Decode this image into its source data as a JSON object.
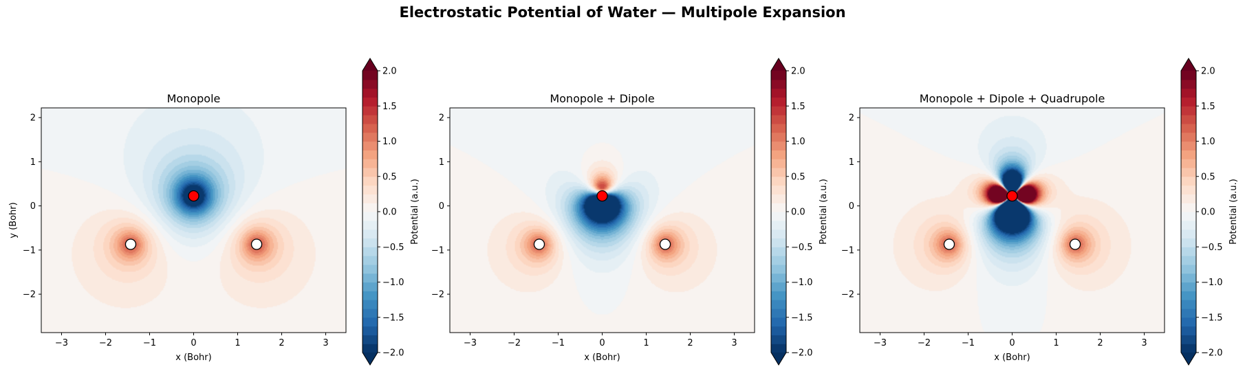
{
  "title": "Electrostatic Potential of Water — Multipole Expansion",
  "colors": {
    "colormap": [
      "#053061",
      "#2166ac",
      "#4393c3",
      "#92c5de",
      "#d1e5f0",
      "#f7f7f7",
      "#fddbc7",
      "#f4a582",
      "#d6604d",
      "#b2182b",
      "#67001f"
    ],
    "oxygen": "#ff0000",
    "hydrogen": "#ffffff",
    "marker_edge": "#000000"
  },
  "chart_data": [
    {
      "type": "heatmap",
      "title": "Monopole",
      "xlabel": "x (Bohr)",
      "ylabel": "y (Bohr)",
      "xlim": [
        -3.46,
        3.46
      ],
      "ylim": [
        -2.87,
        2.22
      ],
      "xticks": [
        -3,
        -2,
        -1,
        0,
        1,
        2,
        3
      ],
      "yticks": [
        -2,
        -1,
        0,
        1,
        2
      ],
      "colorbar": {
        "label": "Potential (a.u.)",
        "range": [
          -2.0,
          2.0
        ],
        "ticks": [
          -2.0,
          -1.5,
          -1.0,
          -0.5,
          0.0,
          0.5,
          1.0,
          1.5,
          2.0
        ],
        "extend": "both"
      },
      "terms": [
        "monopole"
      ],
      "atoms": [
        {
          "element": "O",
          "x": 0.0,
          "y": 0.226
        },
        {
          "element": "H",
          "x": -1.43,
          "y": -0.87
        },
        {
          "element": "H",
          "x": 1.43,
          "y": -0.87
        }
      ]
    },
    {
      "type": "heatmap",
      "title": "Monopole + Dipole",
      "xlabel": "x (Bohr)",
      "ylabel": "",
      "xlim": [
        -3.46,
        3.46
      ],
      "ylim": [
        -2.87,
        2.22
      ],
      "xticks": [
        -3,
        -2,
        -1,
        0,
        1,
        2,
        3
      ],
      "yticks": [
        -2,
        -1,
        0,
        1,
        2
      ],
      "colorbar": {
        "label": "Potential (a.u.)",
        "range": [
          -2.0,
          2.0
        ],
        "ticks": [
          -2.0,
          -1.5,
          -1.0,
          -0.5,
          0.0,
          0.5,
          1.0,
          1.5,
          2.0
        ],
        "extend": "both"
      },
      "terms": [
        "monopole",
        "dipole"
      ],
      "atoms": [
        {
          "element": "O",
          "x": 0.0,
          "y": 0.226
        },
        {
          "element": "H",
          "x": -1.43,
          "y": -0.87
        },
        {
          "element": "H",
          "x": 1.43,
          "y": -0.87
        }
      ]
    },
    {
      "type": "heatmap",
      "title": "Monopole + Dipole + Quadrupole",
      "xlabel": "x (Bohr)",
      "ylabel": "",
      "xlim": [
        -3.46,
        3.46
      ],
      "ylim": [
        -2.87,
        2.22
      ],
      "xticks": [
        -3,
        -2,
        -1,
        0,
        1,
        2,
        3
      ],
      "yticks": [
        -2,
        -1,
        0,
        1,
        2
      ],
      "colorbar": {
        "label": "Potential (a.u.)",
        "range": [
          -2.0,
          2.0
        ],
        "ticks": [
          -2.0,
          -1.5,
          -1.0,
          -0.5,
          0.0,
          0.5,
          1.0,
          1.5,
          2.0
        ],
        "extend": "both"
      },
      "terms": [
        "monopole",
        "dipole",
        "quadrupole"
      ],
      "atoms": [
        {
          "element": "O",
          "x": 0.0,
          "y": 0.226
        },
        {
          "element": "H",
          "x": -1.43,
          "y": -0.87
        },
        {
          "element": "H",
          "x": 1.43,
          "y": -0.87
        }
      ]
    }
  ]
}
